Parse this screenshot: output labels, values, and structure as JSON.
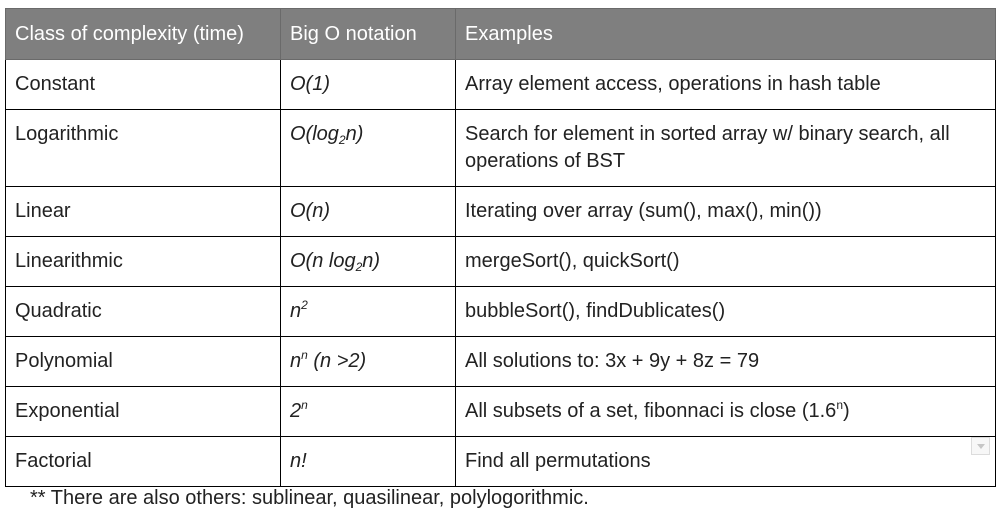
{
  "table": {
    "headers": [
      "Class of complexity (time)",
      "Big O notation",
      "Examples"
    ],
    "rows": [
      {
        "class": "Constant",
        "notation": {
          "pre": "O(1)"
        },
        "examples": "Array element access, operations in hash table"
      },
      {
        "class": "Logarithmic",
        "notation": {
          "pre": "O(log",
          "sub": "2",
          "post": "n)"
        },
        "examples": "Search for element in sorted array w/ binary search, all operations of BST"
      },
      {
        "class": "Linear",
        "notation": {
          "pre": "O(n)"
        },
        "examples": "Iterating over array (sum(), max(), min())"
      },
      {
        "class": "Linearithmic",
        "notation": {
          "pre": "O(n log",
          "sub": "2",
          "post": "n)"
        },
        "examples": "mergeSort(), quickSort()"
      },
      {
        "class": "Quadratic",
        "notation": {
          "pre": "n",
          "sup": "2"
        },
        "examples": "bubbleSort(), findDublicates()"
      },
      {
        "class": "Polynomial",
        "notation": {
          "pre": "n",
          "sup": "n",
          "post": " (n >2)"
        },
        "examples": "All solutions to: 3x + 9y + 8z = 79"
      },
      {
        "class": "Exponential",
        "notation": {
          "pre": "2",
          "sup": "n"
        },
        "examples": {
          "pre": "All subsets of a set, fibonnaci is close (1.6",
          "sup": "n",
          "post": ")"
        }
      },
      {
        "class": "Factorial",
        "notation": {
          "pre": "n!"
        },
        "examples": "Find all permutations"
      }
    ]
  },
  "footnote": "** There are also others: sublinear, quasilinear, polylogorithmic."
}
